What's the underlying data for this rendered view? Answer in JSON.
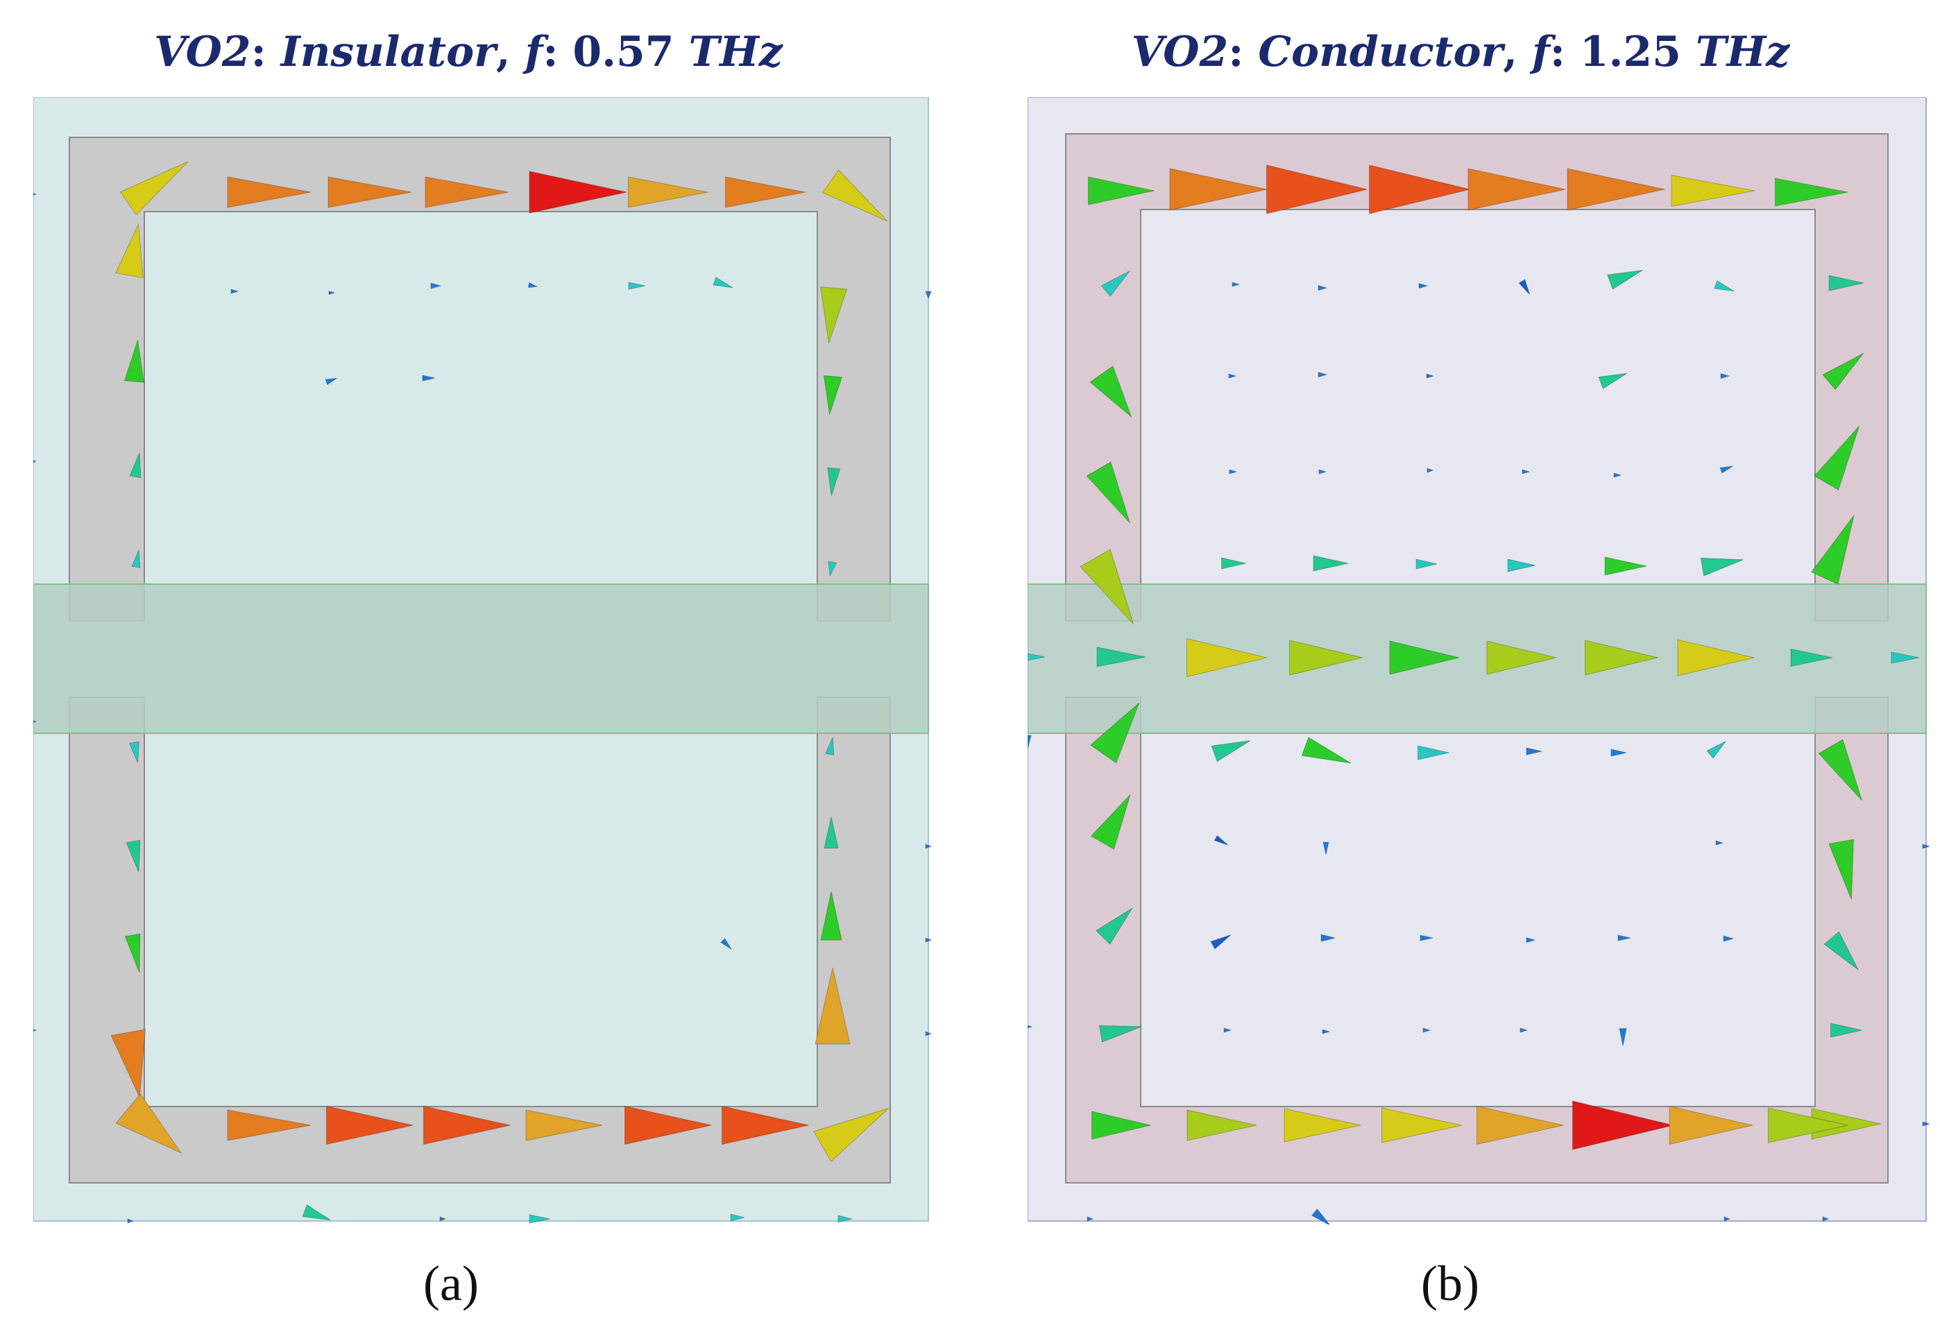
{
  "figure": {
    "panels": [
      {
        "id": "a",
        "label": "(a)",
        "title": {
          "material": "VO2",
          "sep1": ": ",
          "state": "Insulator",
          "sep2": ", ",
          "freq_symbol": "f",
          "sep3": ": ",
          "freq_value": "0.57",
          "freq_unit": "THz"
        }
      },
      {
        "id": "b",
        "label": "(b)",
        "title": {
          "material": "VO2",
          "sep1": ": ",
          "state": "Conductor",
          "sep2": ", ",
          "freq_symbol": "f",
          "sep3": ": ",
          "freq_value": "1.25",
          "freq_unit": "THz"
        }
      }
    ]
  },
  "colors": {
    "substrate_a": "#d8e9e9",
    "substrate_b": "#e6e7f1",
    "ring_a": "#cacaca",
    "ring_b": "#dccad3",
    "strip": "#b4cfc4",
    "edge": "#8a8a8a",
    "strip_edge": "#7fbf8f"
  }
}
